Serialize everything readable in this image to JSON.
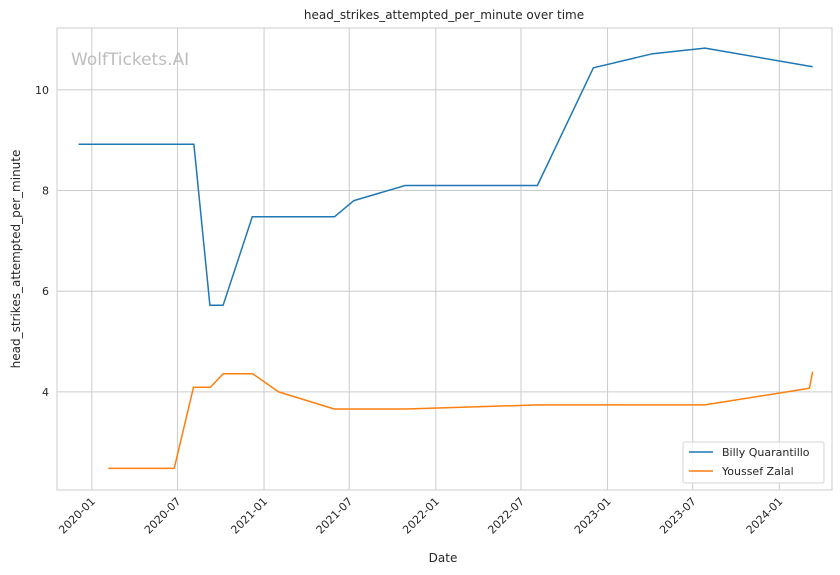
{
  "watermark": "WolfTickets.AI",
  "chart_data": {
    "type": "line",
    "title": "head_strikes_attempted_per_minute over time",
    "xlabel": "Date",
    "ylabel": "head_strikes_attempted_per_minute",
    "xlim": [
      "2019-10-19",
      "2024-04-22"
    ],
    "ylim": [
      2.05,
      11.23
    ],
    "grid": true,
    "legend_position": "lower-right",
    "x_ticks": [
      "2020-01",
      "2020-07",
      "2021-01",
      "2021-07",
      "2022-01",
      "2022-07",
      "2023-01",
      "2023-07",
      "2024-01"
    ],
    "y_ticks": [
      4,
      6,
      8,
      10
    ],
    "series": [
      {
        "name": "Billy Quarantillo",
        "color": "#1f77b4",
        "x": [
          "2019-12-04",
          "2020-08-05",
          "2020-09-08",
          "2020-10-06",
          "2020-12-07",
          "2021-05-31",
          "2021-07-11",
          "2021-10-28",
          "2022-08-05",
          "2022-12-02",
          "2023-04-07",
          "2023-07-27",
          "2024-03-12"
        ],
        "y": [
          8.92,
          8.92,
          5.72,
          5.72,
          7.48,
          7.48,
          7.8,
          8.1,
          8.1,
          10.44,
          10.72,
          10.83,
          10.46
        ]
      },
      {
        "name": "Youssef Zalal",
        "color": "#ff7f0e",
        "x": [
          "2020-02-05",
          "2020-06-24",
          "2020-08-04",
          "2020-09-09",
          "2020-10-06",
          "2020-12-08",
          "2021-02-01",
          "2021-05-30",
          "2021-10-30",
          "2022-08-06",
          "2023-07-27",
          "2024-03-05",
          "2024-03-12"
        ],
        "y": [
          2.48,
          2.48,
          4.09,
          4.09,
          4.36,
          4.36,
          4.0,
          3.66,
          3.66,
          3.74,
          3.74,
          4.07,
          4.4
        ]
      }
    ]
  }
}
